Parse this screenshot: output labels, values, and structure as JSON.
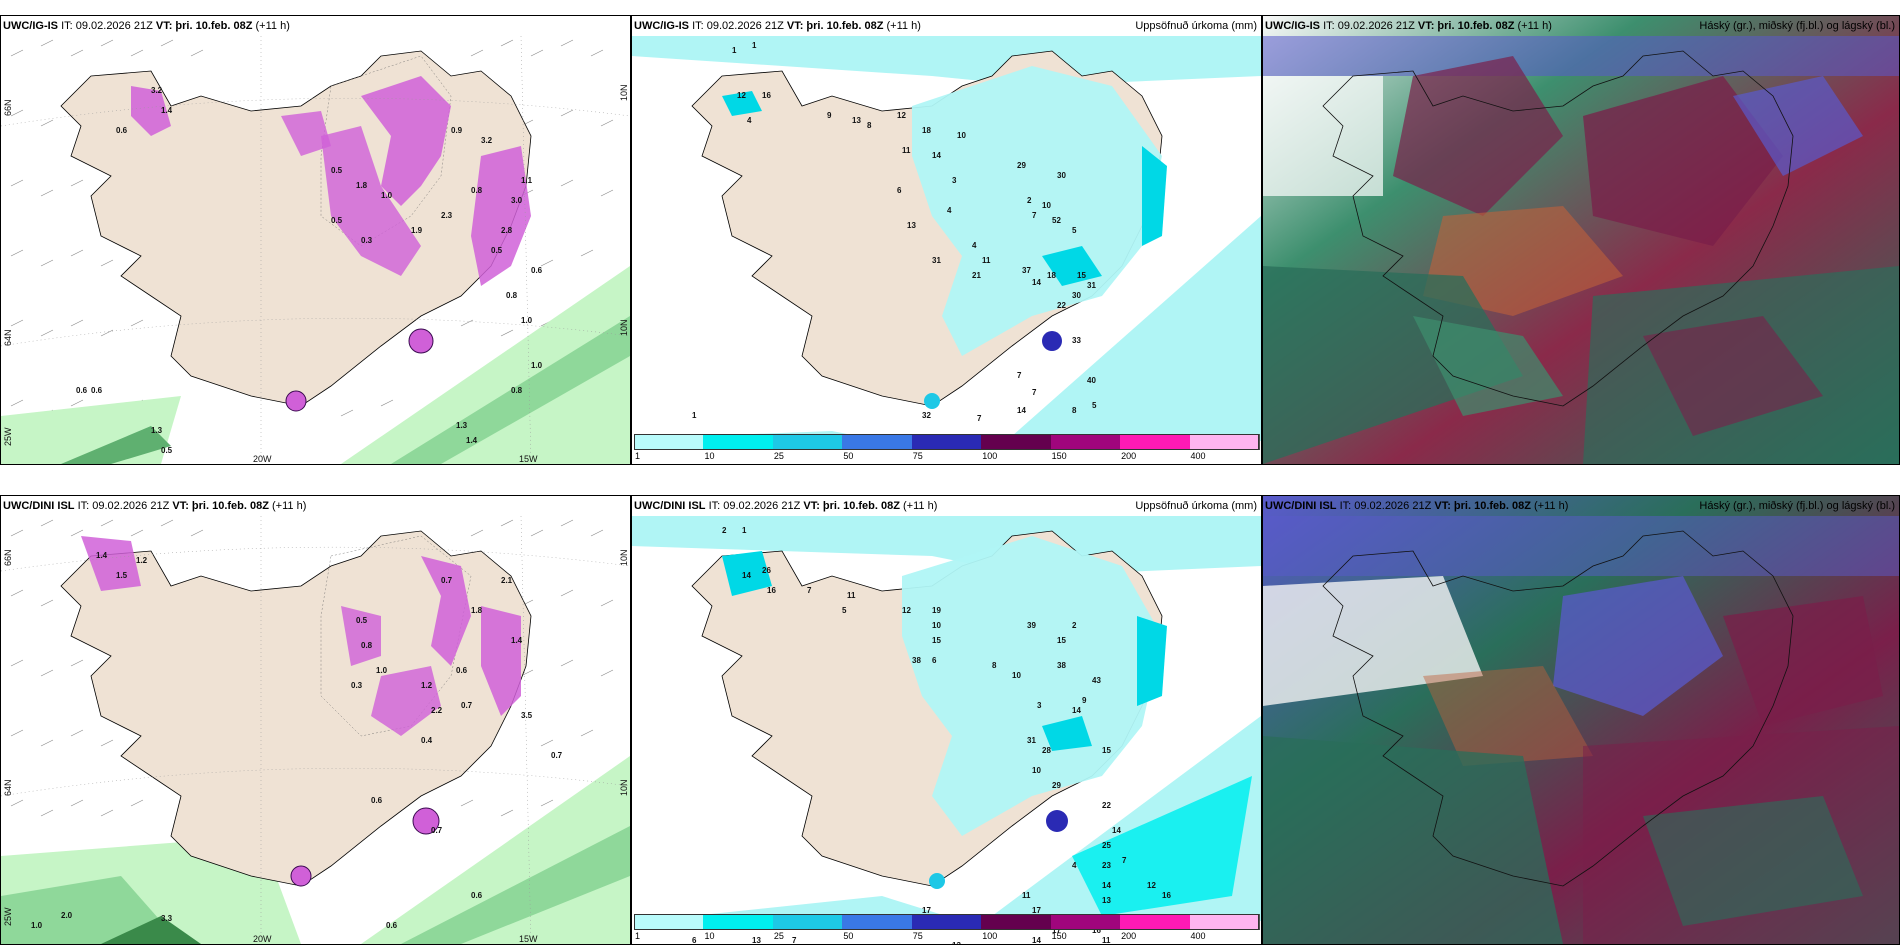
{
  "panels": [
    {
      "id": "p1",
      "model": "UWC/IG-IS",
      "it": "IT: 09.02.2026 21Z",
      "vt_label": "VT:",
      "vt": "þri. 10.feb. 08Z",
      "lead": "(+11 h)",
      "right_title": "",
      "lon_labels": [
        "20W",
        "15W"
      ],
      "lat_labels_left": [
        "66N",
        "64N",
        "25W"
      ],
      "lat_labels_right": [
        "10N",
        "10N"
      ],
      "numbers": [
        "3.2",
        "0.6",
        "1.4",
        "0.9",
        "3.2",
        "0.5",
        "1.8",
        "1.0",
        "0.5",
        "1.9",
        "2.3",
        "0.8",
        "0.3",
        "0.5",
        "1.1",
        "3.0",
        "2.8",
        "0.6",
        "0.8",
        "1.0",
        "1.0",
        "0.8",
        "0.6",
        "0.6",
        "1.3",
        "1.4",
        "0.5",
        "1.3"
      ]
    },
    {
      "id": "p2",
      "model": "UWC/IG-IS",
      "it": "IT: 09.02.2026 21Z",
      "vt_label": "VT:",
      "vt": "þri. 10.feb. 08Z",
      "lead": "(+11 h)",
      "right_title": "Uppsöfnuð úrkoma (mm)",
      "numbers": [
        "1",
        "1",
        "12",
        "16",
        "4",
        "9",
        "13",
        "8",
        "12",
        "18",
        "10",
        "11",
        "14",
        "29",
        "30",
        "6",
        "3",
        "2",
        "10",
        "52",
        "13",
        "4",
        "7",
        "5",
        "4",
        "11",
        "31",
        "21",
        "37",
        "18",
        "15",
        "30",
        "22",
        "31",
        "33",
        "40",
        "7",
        "8",
        "5",
        "7",
        "14",
        "7",
        "14",
        "32",
        "1"
      ]
    },
    {
      "id": "p3",
      "model": "UWC/IG-IS",
      "it": "IT: 09.02.2026 21Z",
      "vt_label": "VT:",
      "vt": "þri. 10.feb. 08Z",
      "lead": "(+11 h)",
      "right_title": "Háský (gr.), miðský (fj.bl.) og lágský (bl.)"
    },
    {
      "id": "p4",
      "model": "UWC/DINI ISL",
      "it": "IT: 09.02.2026 21Z",
      "vt_label": "VT:",
      "vt": "þri. 10.feb. 08Z",
      "lead": "(+11 h)",
      "right_title": "",
      "lon_labels": [
        "20W",
        "15W"
      ],
      "lat_labels_left": [
        "66N",
        "64N",
        "25W"
      ],
      "lat_labels_right": [
        "10N",
        "10N"
      ],
      "numbers": [
        "1.5",
        "1.4",
        "1.2",
        "0.7",
        "2.1",
        "0.5",
        "1.8",
        "1.4",
        "0.8",
        "0.3",
        "1.0",
        "1.2",
        "0.4",
        "0.6",
        "2.2",
        "0.7",
        "3.5",
        "0.7",
        "0.6",
        "0.7",
        "1.0",
        "2.0",
        "3.3",
        "0.6",
        "0.6"
      ]
    },
    {
      "id": "p5",
      "model": "UWC/DINI ISL",
      "it": "IT: 09.02.2026 21Z",
      "vt_label": "VT:",
      "vt": "þri. 10.feb. 08Z",
      "lead": "(+11 h)",
      "right_title": "Uppsöfnuð úrkoma (mm)",
      "numbers": [
        "2",
        "1",
        "14",
        "26",
        "16",
        "7",
        "11",
        "5",
        "12",
        "19",
        "10",
        "15",
        "38",
        "39",
        "15",
        "2",
        "6",
        "8",
        "10",
        "38",
        "3",
        "14",
        "9",
        "43",
        "31",
        "10",
        "29",
        "15",
        "28",
        "22",
        "14",
        "25",
        "23",
        "4",
        "7",
        "12",
        "16",
        "13",
        "11",
        "17",
        "17",
        "11",
        "11",
        "14",
        "14",
        "16",
        "17",
        "28",
        "13",
        "6",
        "7",
        "13"
      ]
    },
    {
      "id": "p6",
      "model": "UWC/DINI ISL",
      "it": "IT: 09.02.2026 21Z",
      "vt_label": "VT:",
      "vt": "þri. 10.feb. 08Z",
      "lead": "(+11 h)",
      "right_title": "Háský (gr.), miðský (fj.bl.) og lágský (bl.)"
    }
  ],
  "colorbar": {
    "ticks": [
      "1",
      "10",
      "25",
      "50",
      "75",
      "100",
      "150",
      "200",
      "400"
    ],
    "colors": [
      "#b9fbfb",
      "#00efef",
      "#1ec8e6",
      "#3a78e6",
      "#2a2ab4",
      "#64004e",
      "#a0057c",
      "#ff1ab4",
      "#ffb4f0"
    ]
  },
  "colors": {
    "land": "#efe2d4",
    "sea": "#ffffff",
    "green_precip": "#c6f5c6",
    "purple_snow": "#d060d8",
    "cyan_precip": "#b0f5f5",
    "cloud_high": "#7a1f4a",
    "cloud_mid": "#2a6e5a",
    "cloud_low": "#5a5acc"
  }
}
